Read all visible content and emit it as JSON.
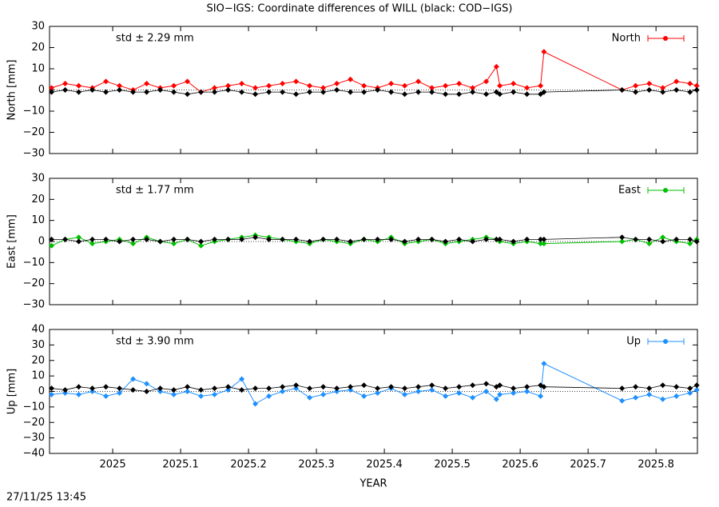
{
  "title": "SIO−IGS: Coordinate differences of WILL (black: COD−IGS)",
  "timestamp": "27/11/25 13:45",
  "chart_data": [
    {
      "type": "line",
      "ylabel": "North [mm]",
      "annotation": "std ± 2.29 mm",
      "xlim": [
        2024.907,
        2025.861
      ],
      "xticks": [
        2025,
        2025.1,
        2025.2,
        2025.3,
        2025.4,
        2025.5,
        2025.6,
        2025.7,
        2025.8
      ],
      "ylim": [
        -30,
        30
      ],
      "yticks": [
        {
          "value": -30,
          "label": "−30"
        },
        {
          "value": -20,
          "label": "−20"
        },
        {
          "value": -10,
          "label": "−10"
        },
        0,
        10,
        20,
        30
      ],
      "x": [
        2024.91,
        2024.93,
        2024.95,
        2024.97,
        2024.99,
        2025.01,
        2025.03,
        2025.05,
        2025.07,
        2025.09,
        2025.11,
        2025.13,
        2025.15,
        2025.17,
        2025.19,
        2025.21,
        2025.23,
        2025.25,
        2025.27,
        2025.29,
        2025.31,
        2025.33,
        2025.35,
        2025.37,
        2025.39,
        2025.41,
        2025.43,
        2025.45,
        2025.47,
        2025.49,
        2025.51,
        2025.53,
        2025.55,
        2025.565,
        2025.57,
        2025.59,
        2025.61,
        2025.63,
        2025.635,
        2025.75,
        2025.77,
        2025.79,
        2025.81,
        2025.83,
        2025.85,
        2025.86
      ],
      "series": [
        {
          "name": "North",
          "color": "#ff0000",
          "values": [
            1,
            3,
            2,
            1,
            4,
            2,
            0,
            3,
            1,
            2,
            4,
            -1,
            1,
            2,
            3,
            1,
            2,
            3,
            4,
            2,
            1,
            3,
            5,
            2,
            1,
            3,
            2,
            4,
            1,
            2,
            3,
            1,
            4,
            11,
            2,
            3,
            1,
            2,
            18,
            0,
            2,
            3,
            1,
            4,
            3,
            2
          ]
        },
        {
          "color": "#000000",
          "values": [
            -1,
            0,
            -1,
            0,
            -1,
            0,
            -1,
            -1,
            0,
            -1,
            -2,
            -1,
            -1,
            0,
            -1,
            -2,
            -1,
            -1,
            -2,
            -1,
            -1,
            0,
            -1,
            -1,
            0,
            -1,
            -2,
            -1,
            -1,
            -2,
            -2,
            -1,
            -2,
            -1,
            -2,
            -1,
            -2,
            -2,
            -1,
            0,
            -1,
            0,
            -1,
            0,
            -1,
            0
          ]
        }
      ]
    },
    {
      "type": "line",
      "ylabel": "East [mm]",
      "annotation": "std ± 1.77 mm",
      "xlim": [
        2024.907,
        2025.861
      ],
      "xticks": [
        2025,
        2025.1,
        2025.2,
        2025.3,
        2025.4,
        2025.5,
        2025.6,
        2025.7,
        2025.8
      ],
      "ylim": [
        -30,
        30
      ],
      "yticks": [
        {
          "value": -30,
          "label": "−30"
        },
        {
          "value": -20,
          "label": "−20"
        },
        {
          "value": -10,
          "label": "−10"
        },
        0,
        10,
        20,
        30
      ],
      "x": [
        2024.91,
        2024.93,
        2024.95,
        2024.97,
        2024.99,
        2025.01,
        2025.03,
        2025.05,
        2025.07,
        2025.09,
        2025.11,
        2025.13,
        2025.15,
        2025.17,
        2025.19,
        2025.21,
        2025.23,
        2025.25,
        2025.27,
        2025.29,
        2025.31,
        2025.33,
        2025.35,
        2025.37,
        2025.39,
        2025.41,
        2025.43,
        2025.45,
        2025.47,
        2025.49,
        2025.51,
        2025.53,
        2025.55,
        2025.565,
        2025.57,
        2025.59,
        2025.61,
        2025.63,
        2025.635,
        2025.75,
        2025.77,
        2025.79,
        2025.81,
        2025.83,
        2025.85,
        2025.86
      ],
      "series": [
        {
          "name": "East",
          "color": "#00c000",
          "values": [
            -2,
            1,
            2,
            -1,
            0,
            1,
            -1,
            2,
            0,
            -1,
            1,
            -2,
            0,
            1,
            2,
            3,
            2,
            1,
            0,
            -1,
            1,
            0,
            -1,
            1,
            0,
            2,
            -1,
            0,
            1,
            -1,
            0,
            1,
            2,
            1,
            0,
            -1,
            0,
            -1,
            -1,
            0,
            1,
            -1,
            2,
            0,
            -1,
            1
          ]
        },
        {
          "color": "#000000",
          "values": [
            1,
            1,
            0,
            1,
            1,
            0,
            1,
            1,
            0,
            1,
            1,
            0,
            1,
            1,
            1,
            2,
            1,
            1,
            1,
            0,
            1,
            1,
            0,
            1,
            1,
            1,
            0,
            1,
            1,
            0,
            1,
            0,
            1,
            1,
            1,
            0,
            1,
            1,
            1,
            2,
            1,
            1,
            0,
            1,
            1,
            0
          ]
        }
      ]
    },
    {
      "type": "line",
      "ylabel": "Up [mm]",
      "xlabel": "YEAR",
      "annotation": "std ± 3.90 mm",
      "xlim": [
        2024.907,
        2025.861
      ],
      "xticks": [
        2025,
        2025.1,
        2025.2,
        2025.3,
        2025.4,
        2025.5,
        2025.6,
        2025.7,
        2025.8
      ],
      "ylim": [
        -40,
        40
      ],
      "yticks": [
        {
          "value": -40,
          "label": "−40"
        },
        {
          "value": -30,
          "label": "−30"
        },
        {
          "value": -20,
          "label": "−20"
        },
        {
          "value": -10,
          "label": "−10"
        },
        0,
        10,
        20,
        30,
        40
      ],
      "x": [
        2024.91,
        2024.93,
        2024.95,
        2024.97,
        2024.99,
        2025.01,
        2025.03,
        2025.05,
        2025.07,
        2025.09,
        2025.11,
        2025.13,
        2025.15,
        2025.17,
        2025.19,
        2025.21,
        2025.23,
        2025.25,
        2025.27,
        2025.29,
        2025.31,
        2025.33,
        2025.35,
        2025.37,
        2025.39,
        2025.41,
        2025.43,
        2025.45,
        2025.47,
        2025.49,
        2025.51,
        2025.53,
        2025.55,
        2025.565,
        2025.57,
        2025.59,
        2025.61,
        2025.63,
        2025.635,
        2025.75,
        2025.77,
        2025.79,
        2025.81,
        2025.83,
        2025.85,
        2025.86
      ],
      "series": [
        {
          "name": "Up",
          "color": "#1e90ff",
          "values": [
            -2,
            -1,
            -2,
            0,
            -3,
            -1,
            8,
            5,
            0,
            -2,
            0,
            -3,
            -2,
            1,
            8,
            -8,
            -3,
            0,
            2,
            -4,
            -2,
            0,
            1,
            -3,
            -1,
            2,
            -2,
            0,
            1,
            -3,
            -1,
            -4,
            0,
            -5,
            -2,
            -1,
            0,
            -3,
            18,
            -6,
            -4,
            -2,
            -5,
            -3,
            -1,
            1
          ]
        },
        {
          "color": "#000000",
          "values": [
            2,
            1,
            3,
            2,
            3,
            2,
            1,
            0,
            2,
            1,
            3,
            1,
            2,
            3,
            1,
            2,
            2,
            3,
            4,
            2,
            3,
            2,
            3,
            4,
            2,
            3,
            2,
            3,
            4,
            2,
            3,
            4,
            5,
            3,
            4,
            2,
            3,
            4,
            3,
            2,
            3,
            2,
            4,
            3,
            2,
            4
          ]
        }
      ]
    }
  ]
}
